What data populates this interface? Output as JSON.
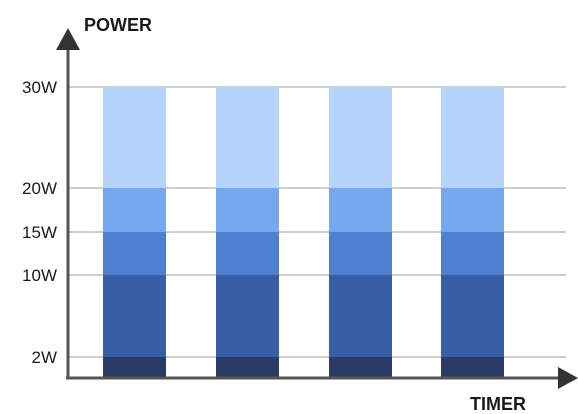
{
  "chart_data": {
    "type": "bar",
    "stacked": true,
    "ylabel": "POWER",
    "xlabel": "TIMER",
    "y_ticks": [
      {
        "value": 2,
        "label": "2W"
      },
      {
        "value": 10,
        "label": "10W"
      },
      {
        "value": 15,
        "label": "15W"
      },
      {
        "value": 20,
        "label": "20W"
      },
      {
        "value": 30,
        "label": "30W"
      }
    ],
    "bar_count": 4,
    "bands": [
      {
        "from": 0,
        "to": 2,
        "color": "#2a3b66"
      },
      {
        "from": 2,
        "to": 10,
        "color": "#3a5ea5"
      },
      {
        "from": 10,
        "to": 15,
        "color": "#4e7fd0"
      },
      {
        "from": 15,
        "to": 20,
        "color": "#76a8ee"
      },
      {
        "from": 20,
        "to": 30,
        "color": "#b4d4fb"
      }
    ],
    "grid": true,
    "colors": {
      "axis": "#555555",
      "grid": "#bdbdbd"
    }
  }
}
